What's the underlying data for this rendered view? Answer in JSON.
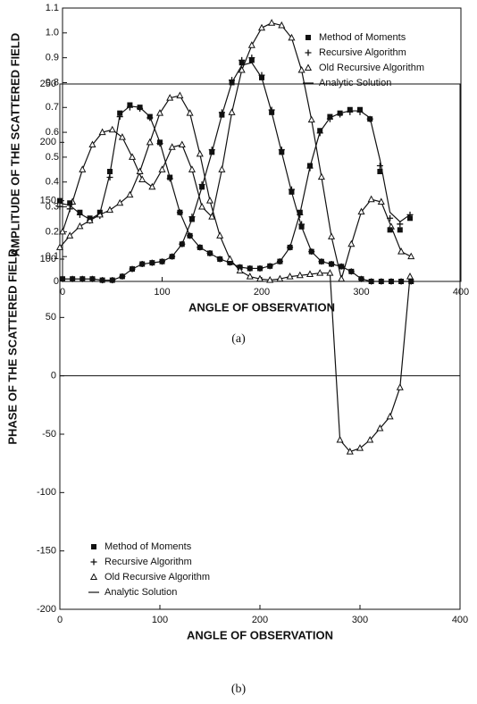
{
  "chart_data": [
    {
      "type": "line",
      "caption": "(a)",
      "x_label": "ANGLE OF OBSERVATION",
      "y_label": "AMPLITUDE OF THE SCATTERED FIELD",
      "x": [
        0,
        10,
        20,
        30,
        40,
        50,
        60,
        70,
        80,
        90,
        100,
        110,
        120,
        130,
        140,
        150,
        160,
        170,
        180,
        190,
        200,
        210,
        220,
        230,
        240,
        250,
        260,
        270,
        280,
        290,
        300,
        310,
        320,
        330,
        340,
        350
      ],
      "series": [
        {
          "name": "Method of Moments",
          "color": "#111111",
          "marker": "square",
          "line": false,
          "values": [
            0.01,
            0.01,
            0.01,
            0.01,
            0.005,
            0.005,
            0.02,
            0.05,
            0.07,
            0.075,
            0.08,
            0.1,
            0.15,
            0.25,
            0.38,
            0.52,
            0.67,
            0.8,
            0.88,
            0.89,
            0.82,
            0.68,
            0.52,
            0.36,
            0.22,
            0.12,
            0.08,
            0.07,
            0.06,
            0.04,
            0.01,
            0,
            0,
            0,
            0,
            0
          ]
        },
        {
          "name": "Recursive Algorithm",
          "color": "#111111",
          "marker": "plus",
          "line": false,
          "values": [
            0.01,
            0.01,
            0.01,
            0.01,
            0.005,
            0.005,
            0.02,
            0.05,
            0.07,
            0.075,
            0.08,
            0.1,
            0.15,
            0.26,
            0.39,
            0.53,
            0.68,
            0.81,
            0.89,
            0.9,
            0.83,
            0.69,
            0.53,
            0.37,
            0.23,
            0.12,
            0.08,
            0.07,
            0.06,
            0.04,
            0.01,
            0,
            0,
            0,
            0,
            0
          ]
        },
        {
          "name": "Old Recursive Algorithm",
          "color": "#111111",
          "marker": "triangle",
          "line": true,
          "values": [
            0.2,
            0.32,
            0.45,
            0.55,
            0.6,
            0.61,
            0.58,
            0.5,
            0.41,
            0.38,
            0.45,
            0.54,
            0.55,
            0.45,
            0.3,
            0.26,
            0.45,
            0.68,
            0.85,
            0.95,
            1.02,
            1.04,
            1.03,
            0.98,
            0.85,
            0.65,
            0.42,
            0.18,
            0.01,
            0.15,
            0.28,
            0.33,
            0.32,
            0.22,
            0.12,
            0.1
          ]
        },
        {
          "name": "Analytic Solution",
          "color": "#111111",
          "marker": "none",
          "line": true,
          "values": [
            0.01,
            0.01,
            0.01,
            0.01,
            0.005,
            0.005,
            0.02,
            0.05,
            0.07,
            0.075,
            0.08,
            0.1,
            0.15,
            0.25,
            0.38,
            0.52,
            0.67,
            0.8,
            0.87,
            0.88,
            0.82,
            0.68,
            0.52,
            0.36,
            0.22,
            0.12,
            0.08,
            0.07,
            0.06,
            0.04,
            0.01,
            0,
            0,
            0,
            0,
            0
          ]
        }
      ],
      "xlim": [
        0,
        400
      ],
      "xticks": [
        0,
        100,
        200,
        300,
        400
      ],
      "ylim": [
        0,
        1.1
      ],
      "yticks": [
        0,
        0.1,
        0.2,
        0.3,
        0.4,
        0.5,
        0.6,
        0.7,
        0.8,
        0.9,
        {
          "value": 1,
          "label": "1.0"
        },
        1.1
      ],
      "legend": "upper right",
      "zero_line": false
    },
    {
      "type": "line",
      "caption": "(b)",
      "x_label": "ANGLE OF OBSERVATION",
      "y_label": "PHASE OF THE SCATTERED FIELD",
      "x": [
        0,
        10,
        20,
        30,
        40,
        50,
        60,
        70,
        80,
        90,
        100,
        110,
        120,
        130,
        140,
        150,
        160,
        170,
        180,
        190,
        200,
        210,
        220,
        230,
        240,
        250,
        260,
        270,
        280,
        290,
        300,
        310,
        320,
        330,
        340,
        350
      ],
      "series": [
        {
          "name": "Method of Moments",
          "color": "#111111",
          "marker": "square",
          "line": false,
          "values": [
            150,
            148,
            140,
            135,
            140,
            175,
            225,
            232,
            230,
            222,
            200,
            170,
            140,
            120,
            110,
            105,
            100,
            97,
            93,
            92,
            92,
            94,
            98,
            110,
            140,
            180,
            210,
            222,
            225,
            228,
            228,
            220,
            175,
            125,
            125,
            135
          ]
        },
        {
          "name": "Recursive Algorithm",
          "color": "#111111",
          "marker": "plus",
          "line": false,
          "values": [
            145,
            143,
            138,
            133,
            137,
            170,
            222,
            230,
            229,
            221,
            199,
            169,
            140,
            120,
            110,
            105,
            100,
            97,
            93,
            92,
            92,
            94,
            98,
            110,
            138,
            178,
            208,
            220,
            224,
            226,
            226,
            220,
            180,
            135,
            130,
            138
          ]
        },
        {
          "name": "Old Recursive Algorithm",
          "color": "#111111",
          "marker": "triangle",
          "line": true,
          "values": [
            110,
            120,
            128,
            133,
            138,
            142,
            148,
            155,
            175,
            200,
            225,
            238,
            240,
            225,
            190,
            150,
            120,
            100,
            90,
            85,
            83,
            82,
            83,
            85,
            86,
            87,
            88,
            88,
            -55,
            -65,
            -62,
            -55,
            -45,
            -35,
            -10,
            85
          ]
        },
        {
          "name": "Analytic Solution",
          "color": "#111111",
          "marker": "none",
          "line": true,
          "values": [
            148,
            146,
            139,
            134,
            139,
            173,
            224,
            231,
            230,
            222,
            200,
            170,
            140,
            120,
            110,
            105,
            100,
            97,
            93,
            92,
            92,
            94,
            98,
            110,
            139,
            179,
            209,
            221,
            225,
            227,
            227,
            221,
            185,
            140,
            132,
            138
          ]
        }
      ],
      "xlim": [
        0,
        400
      ],
      "xticks": [
        0,
        100,
        200,
        300,
        400
      ],
      "ylim": [
        -200,
        250
      ],
      "yticks": [
        -200,
        -150,
        -100,
        -50,
        0,
        50,
        100,
        150,
        200,
        250
      ],
      "legend": "lower left",
      "zero_line": true
    }
  ]
}
